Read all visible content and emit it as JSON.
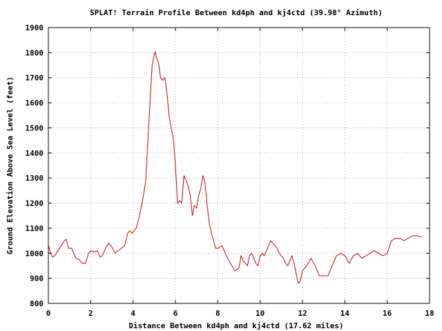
{
  "chart_data": {
    "type": "line",
    "title": "SPLAT! Terrain Profile Between kd4ph and kj4ctd (39.98° Azimuth)",
    "xlabel": "Distance Between kd4ph and kj4ctd (17.62 miles)",
    "ylabel": "Ground Elevation Above Sea Level (feet)",
    "xlim": [
      0,
      18
    ],
    "ylim": [
      800,
      1900
    ],
    "xticks": [
      0,
      2,
      4,
      6,
      8,
      10,
      12,
      14,
      16,
      18
    ],
    "yticks": [
      800,
      900,
      1000,
      1100,
      1200,
      1300,
      1400,
      1500,
      1600,
      1700,
      1800,
      1900
    ],
    "grid": true,
    "line_color": "#cc0000",
    "series": [
      {
        "values_x": [
          0,
          0.1,
          0.2,
          0.3,
          0.45,
          0.6,
          0.75,
          0.85,
          0.95,
          1.1,
          1.3,
          1.45,
          1.6,
          1.75,
          1.9,
          2.0,
          2.15,
          2.3,
          2.45,
          2.55,
          2.7,
          2.85,
          3.0,
          3.15,
          3.3,
          3.45,
          3.6,
          3.75,
          3.85,
          3.95,
          4.05,
          4.15,
          4.3,
          4.45,
          4.6,
          4.7,
          4.8,
          4.9,
          5.0,
          5.05,
          5.1,
          5.2,
          5.3,
          5.4,
          5.5,
          5.6,
          5.7,
          5.8,
          5.9,
          6.0,
          6.1,
          6.2,
          6.3,
          6.4,
          6.5,
          6.6,
          6.7,
          6.8,
          6.9,
          7.0,
          7.1,
          7.2,
          7.3,
          7.4,
          7.5,
          7.6,
          7.7,
          7.8,
          7.9,
          8.0,
          8.2,
          8.4,
          8.6,
          8.8,
          9.0,
          9.1,
          9.2,
          9.3,
          9.4,
          9.5,
          9.6,
          9.7,
          9.8,
          9.9,
          10.0,
          10.1,
          10.2,
          10.3,
          10.4,
          10.5,
          10.6,
          10.7,
          10.8,
          10.9,
          11.0,
          11.1,
          11.2,
          11.3,
          11.4,
          11.5,
          11.6,
          11.7,
          11.8,
          11.9,
          12.0,
          12.2,
          12.4,
          12.6,
          12.8,
          13.0,
          13.2,
          13.4,
          13.6,
          13.8,
          14.0,
          14.2,
          14.4,
          14.6,
          14.8,
          15.0,
          15.2,
          15.4,
          15.6,
          15.8,
          16.0,
          16.2,
          16.4,
          16.6,
          16.8,
          17.0,
          17.2,
          17.4,
          17.62
        ],
        "values_y": [
          1035,
          1000,
          985,
          990,
          1010,
          1030,
          1050,
          1055,
          1020,
          1020,
          980,
          975,
          960,
          960,
          1000,
          1010,
          1005,
          1010,
          985,
          990,
          1020,
          1040,
          1025,
          1000,
          1010,
          1020,
          1030,
          1080,
          1090,
          1080,
          1090,
          1100,
          1150,
          1210,
          1290,
          1450,
          1600,
          1750,
          1790,
          1805,
          1780,
          1760,
          1700,
          1690,
          1700,
          1640,
          1550,
          1500,
          1460,
          1350,
          1200,
          1210,
          1200,
          1310,
          1290,
          1270,
          1230,
          1150,
          1190,
          1180,
          1230,
          1260,
          1310,
          1280,
          1190,
          1120,
          1080,
          1050,
          1020,
          1020,
          1030,
          990,
          960,
          930,
          940,
          990,
          970,
          960,
          950,
          990,
          1000,
          980,
          960,
          950,
          990,
          1000,
          990,
          1010,
          1030,
          1050,
          1040,
          1030,
          1020,
          1000,
          990,
          980,
          960,
          950,
          970,
          990,
          960,
          920,
          880,
          890,
          930,
          950,
          980,
          950,
          910,
          910,
          910,
          950,
          990,
          1000,
          990,
          960,
          990,
          1000,
          980,
          990,
          1000,
          1010,
          1000,
          990,
          1000,
          1050,
          1060,
          1060,
          1050,
          1060,
          1070,
          1070,
          1065
        ]
      }
    ]
  }
}
